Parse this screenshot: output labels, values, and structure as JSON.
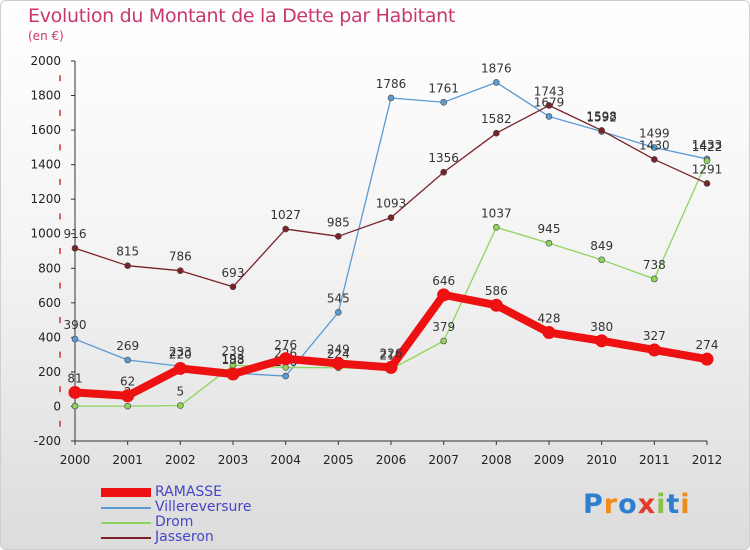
{
  "title": "Evolution du Montant de la Dette par Habitant",
  "unit_label": "(en €)",
  "logo": {
    "letters": [
      "P",
      "r",
      "o",
      "x",
      "i",
      "t",
      "i"
    ],
    "colors": [
      "#2f7fd0",
      "#f08c1a",
      "#2f7fd0",
      "#e23b2a",
      "#8bc34a",
      "#2f7fd0",
      "#f08c1a"
    ]
  },
  "chart_data": {
    "type": "line",
    "x": [
      "2000",
      "2001",
      "2002",
      "2003",
      "2004",
      "2005",
      "2006",
      "2007",
      "2008",
      "2009",
      "2010",
      "2011",
      "2012"
    ],
    "ylim": [
      -200,
      2000
    ],
    "yticks": [
      "-200",
      "0",
      "200",
      "400",
      "600",
      "800",
      "1000",
      "1200",
      "1400",
      "1600",
      "1800",
      "2000"
    ],
    "grid": false,
    "legend_position": "bottom-left",
    "series": [
      {
        "name": "RAMASSE",
        "color": "#ee1111",
        "values": [
          81,
          62,
          220,
          188,
          276,
          249,
          226,
          646,
          586,
          428,
          380,
          327,
          274
        ],
        "labels": [
          "81",
          "62",
          "220",
          "188",
          "276",
          "249",
          "226",
          "646",
          "586",
          "428",
          "380",
          "327",
          "274"
        ]
      },
      {
        "name": "Villereversure",
        "color": "#5b9bd5",
        "values": [
          390,
          269,
          233,
          193,
          176,
          545,
          1786,
          1761,
          1876,
          1679,
          1592,
          1499,
          1433
        ],
        "labels": [
          "390",
          "269",
          "233",
          "193",
          "176",
          "545",
          "1786",
          "1761",
          "1876",
          "1679",
          "1592",
          "1499",
          "1433"
        ]
      },
      {
        "name": "Drom",
        "color": "#8fd45a",
        "values": [
          2,
          2,
          5,
          239,
          226,
          224,
          215,
          379,
          1037,
          945,
          849,
          738,
          1422
        ],
        "labels": [
          "2",
          "2",
          "5",
          "239",
          "226",
          "224",
          "215",
          "379",
          "1037",
          "945",
          "849",
          "738",
          "1422"
        ]
      },
      {
        "name": "Jasseron",
        "color": "#7a2228",
        "values": [
          916,
          815,
          786,
          693,
          1027,
          985,
          1093,
          1356,
          1582,
          1743,
          1598,
          1430,
          1291
        ],
        "labels": [
          "916",
          "815",
          "786",
          "693",
          "1027",
          "985",
          "1093",
          "1356",
          "1582",
          "1743",
          "1598",
          "1430",
          "1291"
        ]
      }
    ]
  }
}
